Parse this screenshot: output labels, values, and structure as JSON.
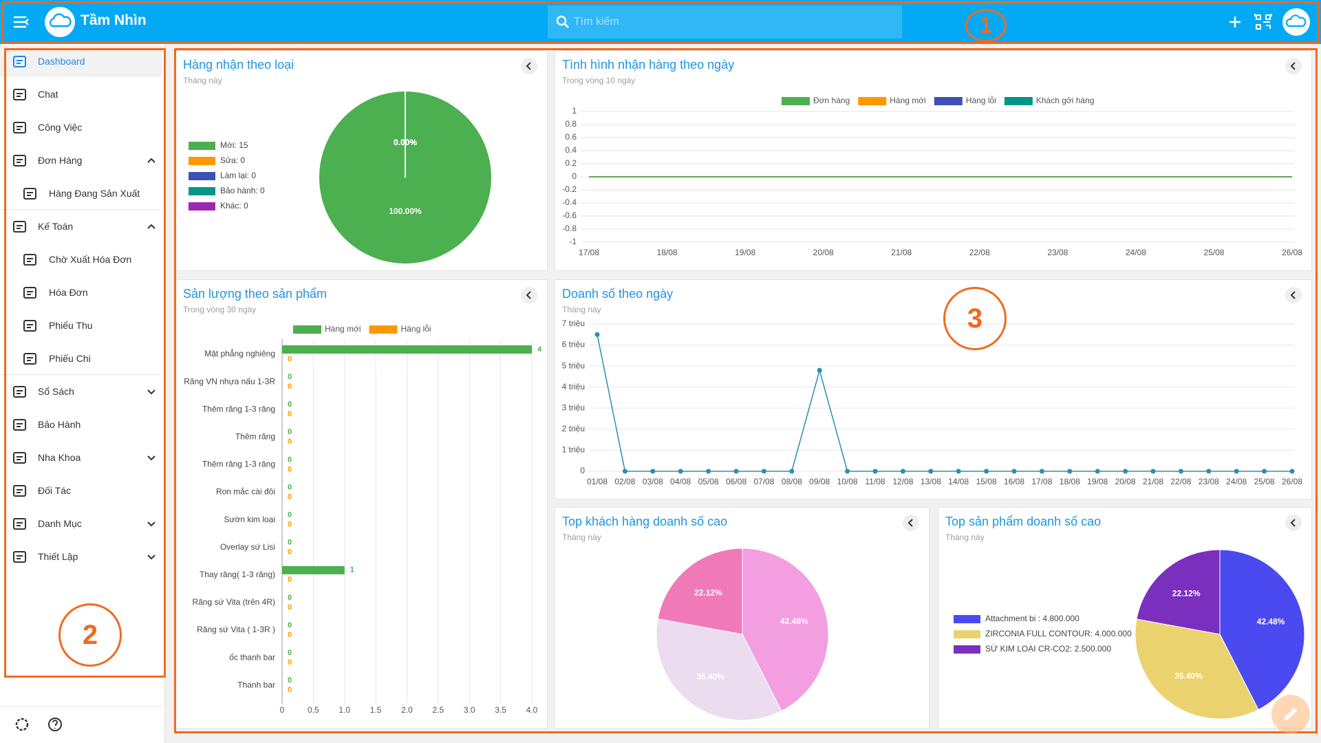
{
  "header": {
    "title": "Tầm Nhìn",
    "search_placeholder": "Tìm kiếm"
  },
  "annotations": [
    "1",
    "2",
    "3"
  ],
  "sidebar": {
    "items": [
      "Dashboard",
      "Chat",
      "Công Việc",
      "Đơn Hàng",
      "Hàng Đang Sản Xuất",
      "Kế Toán",
      "Chờ Xuất Hóa Đơn",
      "Hóa Đơn",
      "Phiếu Thu",
      "Phiếu Chi",
      "Sổ Sách",
      "Bảo Hành",
      "Nha Khoa",
      "Đối Tác",
      "Danh Mục",
      "Thiết Lập"
    ]
  },
  "panels": [
    {
      "title": "Hàng nhận theo loại",
      "subtitle": "Tháng này",
      "chart": {
        "type": "pie",
        "legend_labels": [
          "Mới: 15",
          "Sửa: 0",
          "Làm lại: 0",
          "Bảo hành: 0",
          "Khác: 0"
        ],
        "values": [
          15,
          0,
          0,
          0,
          0
        ],
        "value_labels": [
          "100.00%",
          "0.00%",
          "0.00%",
          "0.00%",
          "0.00%"
        ],
        "colors": [
          "#4caf50",
          "#ff9800",
          "#3f51b5",
          "#009688",
          "#9c27b0"
        ]
      }
    },
    {
      "title": "Tình hình nhận hàng theo ngày",
      "subtitle": "Trong vòng 10 ngày",
      "chart": {
        "type": "line",
        "x": [
          "17/08",
          "18/08",
          "19/08",
          "20/08",
          "21/08",
          "22/08",
          "23/08",
          "24/08",
          "25/08",
          "26/08"
        ],
        "series": [
          {
            "name": "Đơn hàng",
            "color": "#4caf50",
            "values": [
              0,
              0,
              0,
              0,
              0,
              0,
              0,
              0,
              0,
              0
            ]
          },
          {
            "name": "Hàng mới",
            "color": "#ff9800",
            "values": [
              0,
              0,
              0,
              0,
              0,
              0,
              0,
              0,
              0,
              0
            ]
          },
          {
            "name": "Hàng lỗi",
            "color": "#3f51b5",
            "values": [
              0,
              0,
              0,
              0,
              0,
              0,
              0,
              0,
              0,
              0
            ]
          },
          {
            "name": "Khách gởi hàng",
            "color": "#009688",
            "values": [
              0,
              0,
              0,
              0,
              0,
              0,
              0,
              0,
              0,
              0
            ]
          }
        ],
        "ylim": [
          -1,
          1
        ],
        "yticks": [
          1,
          0.8,
          0.6,
          0.4,
          0.2,
          0,
          -0.2,
          -0.4,
          -0.6,
          -0.8,
          -1
        ],
        "grid": true,
        "legend": "top"
      }
    },
    {
      "title": "Sản lượng theo sản phẩm",
      "subtitle": "Trong vòng 30 ngày",
      "chart": {
        "type": "hbar",
        "categories": [
          "Mặt phẳng nghiêng",
          "Răng VN nhựa nấu 1-3R",
          "Thêm răng 1-3 răng",
          "Thêm răng",
          "Thêm răng 1-3 răng",
          "Ron mắc cài đôi",
          "Sườn kim loại",
          "Overlay sứ Lisi",
          "Thay răng( 1-3 răng)",
          "Răng sứ Vita (trên 4R)",
          "Răng sứ Vita ( 1-3R )",
          "ốc thanh bar",
          "Thanh bar"
        ],
        "series": [
          {
            "name": "Hàng mới",
            "color": "#4caf50",
            "values": [
              4,
              0,
              0,
              0,
              0,
              0,
              0,
              0,
              1,
              0,
              0,
              0,
              0
            ]
          },
          {
            "name": "Hàng lỗi",
            "color": "#ff9800",
            "values": [
              0,
              0,
              0,
              0,
              0,
              0,
              0,
              0,
              0,
              0,
              0,
              0,
              0
            ]
          }
        ],
        "xlim": [
          0,
          4
        ],
        "xticks": [
          0,
          0.5,
          {
            "value": 1,
            "label": "1.0"
          },
          1.5,
          {
            "value": 2,
            "label": "2.0"
          },
          2.5,
          {
            "value": 3,
            "label": "3.0"
          },
          3.5,
          {
            "value": 4,
            "label": "4.0"
          }
        ],
        "grid": true,
        "legend": "top"
      }
    },
    {
      "title": "Doanh số theo ngày",
      "subtitle": "Tháng này",
      "chart": {
        "type": "line",
        "x": [
          "01/08",
          "02/08",
          "03/08",
          "04/08",
          "05/08",
          "06/08",
          "07/08",
          "08/08",
          "09/08",
          "10/08",
          "11/08",
          "12/08",
          "13/08",
          "14/08",
          "15/08",
          "16/08",
          "17/08",
          "18/08",
          "19/08",
          "20/08",
          "21/08",
          "22/08",
          "23/08",
          "24/08",
          "25/08",
          "26/08"
        ],
        "series": [
          {
            "color": "#2a8fb0",
            "values": [
              6500000,
              0,
              0,
              0,
              0,
              0,
              0,
              0,
              4800000,
              0,
              0,
              0,
              0,
              0,
              0,
              0,
              0,
              0,
              0,
              0,
              0,
              0,
              0,
              0,
              0,
              0
            ]
          }
        ],
        "ylim": [
          0,
          7000000
        ],
        "yticks": [
          {
            "value": 7000000,
            "label": "7 triệu"
          },
          {
            "value": 6000000,
            "label": "6 triệu"
          },
          {
            "value": 5000000,
            "label": "5 triệu"
          },
          {
            "value": 4000000,
            "label": "4 triệu"
          },
          {
            "value": 3000000,
            "label": "3 triệu"
          },
          {
            "value": 2000000,
            "label": "2 triệu"
          },
          {
            "value": 1000000,
            "label": "1 triệu"
          },
          0
        ],
        "grid": true,
        "markers": true
      }
    },
    {
      "title": "Top khách hàng doanh số cao",
      "subtitle": "Tháng này",
      "chart": {
        "type": "pie",
        "values": [
          42.48,
          35.4,
          22.12
        ],
        "value_labels": [
          "42.48%",
          "35.40%",
          "22.12%"
        ],
        "colors": [
          "#f29ee0",
          "#ecdcf0",
          "#f07ab8"
        ]
      }
    },
    {
      "title": "Top sản phẩm doanh số cao",
      "subtitle": "Tháng này",
      "chart": {
        "type": "pie",
        "legend_labels": [
          "Attachment bi : 4.800.000",
          "ZIRCONIA FULL CONTOUR: 4.000.000",
          "SỨ KIM LOẠI CR-CO2: 2.500.000"
        ],
        "values": [
          4800000,
          4000000,
          2500000
        ],
        "value_labels": [
          "42.48%",
          "35.40%",
          "22.12%"
        ],
        "colors": [
          "#4a4af0",
          "#ead36e",
          "#7b2fbe"
        ]
      }
    }
  ]
}
